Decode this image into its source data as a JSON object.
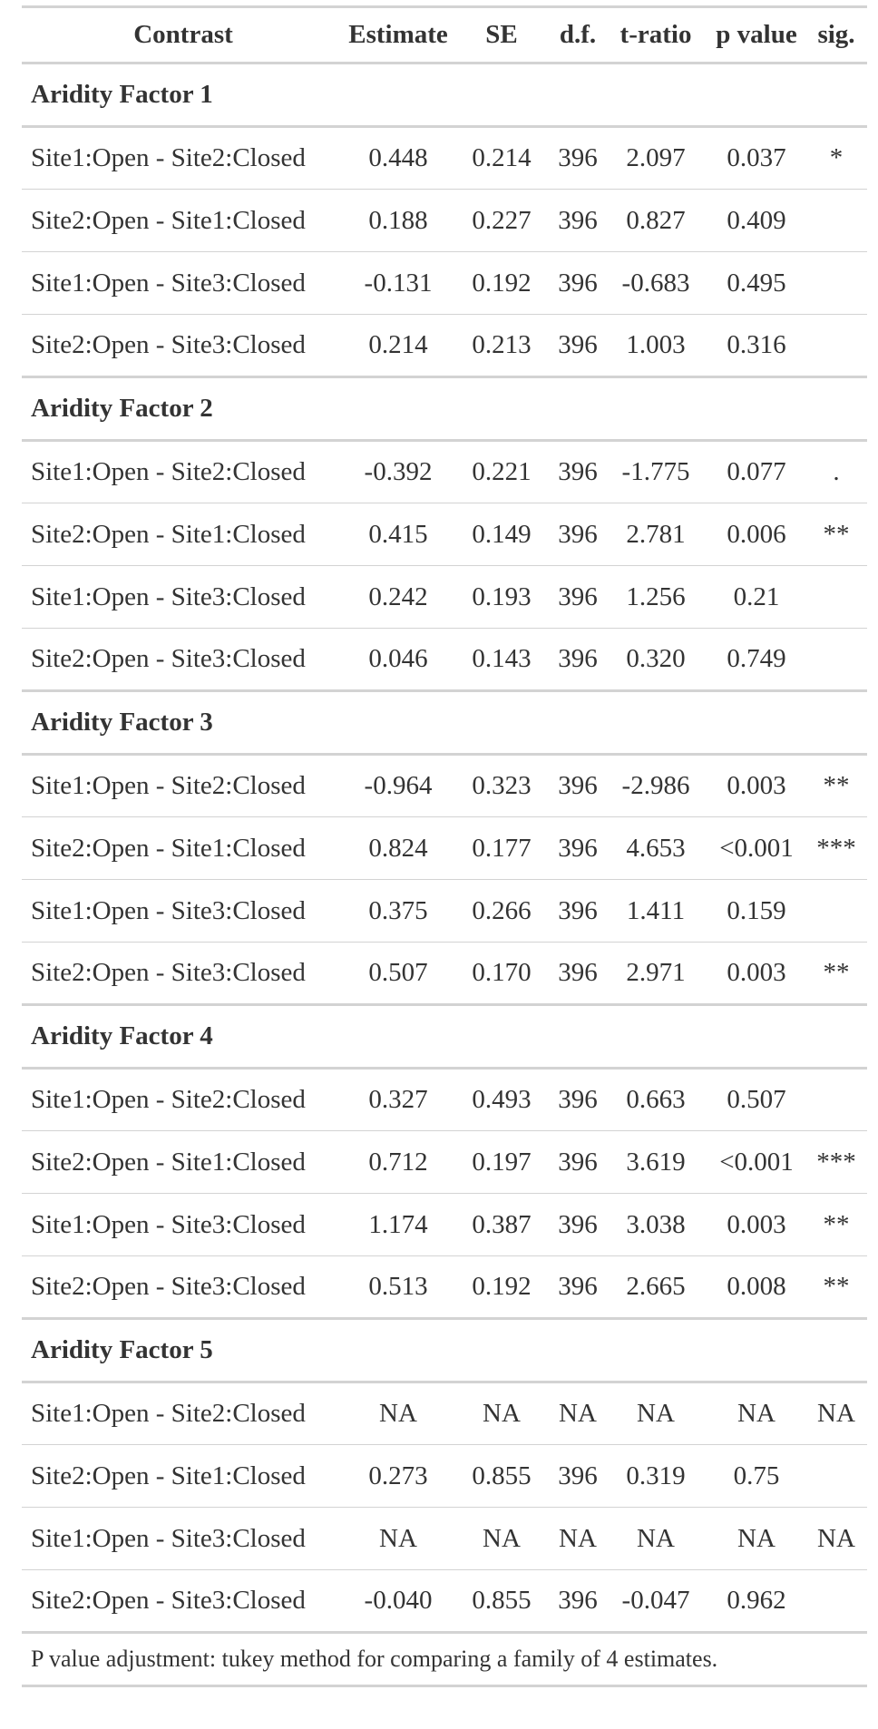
{
  "table": {
    "headers": [
      "Contrast",
      "Estimate",
      "SE",
      "d.f.",
      "t-ratio",
      "p value",
      "sig."
    ],
    "groups": [
      {
        "label": "Aridity Factor 1",
        "rows": [
          [
            "Site1:Open - Site2:Closed",
            "0.448",
            "0.214",
            "396",
            "2.097",
            "0.037",
            "*"
          ],
          [
            "Site2:Open - Site1:Closed",
            "0.188",
            "0.227",
            "396",
            "0.827",
            "0.409",
            ""
          ],
          [
            "Site1:Open - Site3:Closed",
            "-0.131",
            "0.192",
            "396",
            "-0.683",
            "0.495",
            ""
          ],
          [
            "Site2:Open - Site3:Closed",
            "0.214",
            "0.213",
            "396",
            "1.003",
            "0.316",
            ""
          ]
        ]
      },
      {
        "label": "Aridity Factor 2",
        "rows": [
          [
            "Site1:Open - Site2:Closed",
            "-0.392",
            "0.221",
            "396",
            "-1.775",
            "0.077",
            "."
          ],
          [
            "Site2:Open - Site1:Closed",
            "0.415",
            "0.149",
            "396",
            "2.781",
            "0.006",
            "**"
          ],
          [
            "Site1:Open - Site3:Closed",
            "0.242",
            "0.193",
            "396",
            "1.256",
            "0.21",
            ""
          ],
          [
            "Site2:Open - Site3:Closed",
            "0.046",
            "0.143",
            "396",
            "0.320",
            "0.749",
            ""
          ]
        ]
      },
      {
        "label": "Aridity Factor 3",
        "rows": [
          [
            "Site1:Open - Site2:Closed",
            "-0.964",
            "0.323",
            "396",
            "-2.986",
            "0.003",
            "**"
          ],
          [
            "Site2:Open - Site1:Closed",
            "0.824",
            "0.177",
            "396",
            "4.653",
            "<0.001",
            "***"
          ],
          [
            "Site1:Open - Site3:Closed",
            "0.375",
            "0.266",
            "396",
            "1.411",
            "0.159",
            ""
          ],
          [
            "Site2:Open - Site3:Closed",
            "0.507",
            "0.170",
            "396",
            "2.971",
            "0.003",
            "**"
          ]
        ]
      },
      {
        "label": "Aridity Factor 4",
        "rows": [
          [
            "Site1:Open - Site2:Closed",
            "0.327",
            "0.493",
            "396",
            "0.663",
            "0.507",
            ""
          ],
          [
            "Site2:Open - Site1:Closed",
            "0.712",
            "0.197",
            "396",
            "3.619",
            "<0.001",
            "***"
          ],
          [
            "Site1:Open - Site3:Closed",
            "1.174",
            "0.387",
            "396",
            "3.038",
            "0.003",
            "**"
          ],
          [
            "Site2:Open - Site3:Closed",
            "0.513",
            "0.192",
            "396",
            "2.665",
            "0.008",
            "**"
          ]
        ]
      },
      {
        "label": "Aridity Factor 5",
        "rows": [
          [
            "Site1:Open - Site2:Closed",
            "NA",
            "NA",
            "NA",
            "NA",
            "NA",
            "NA"
          ],
          [
            "Site2:Open - Site1:Closed",
            "0.273",
            "0.855",
            "396",
            "0.319",
            "0.75",
            ""
          ],
          [
            "Site1:Open - Site3:Closed",
            "NA",
            "NA",
            "NA",
            "NA",
            "NA",
            "NA"
          ],
          [
            "Site2:Open - Site3:Closed",
            "-0.040",
            "0.855",
            "396",
            "-0.047",
            "0.962",
            ""
          ]
        ]
      }
    ],
    "footnote": "P value adjustment: tukey method for comparing a family of 4 estimates."
  }
}
